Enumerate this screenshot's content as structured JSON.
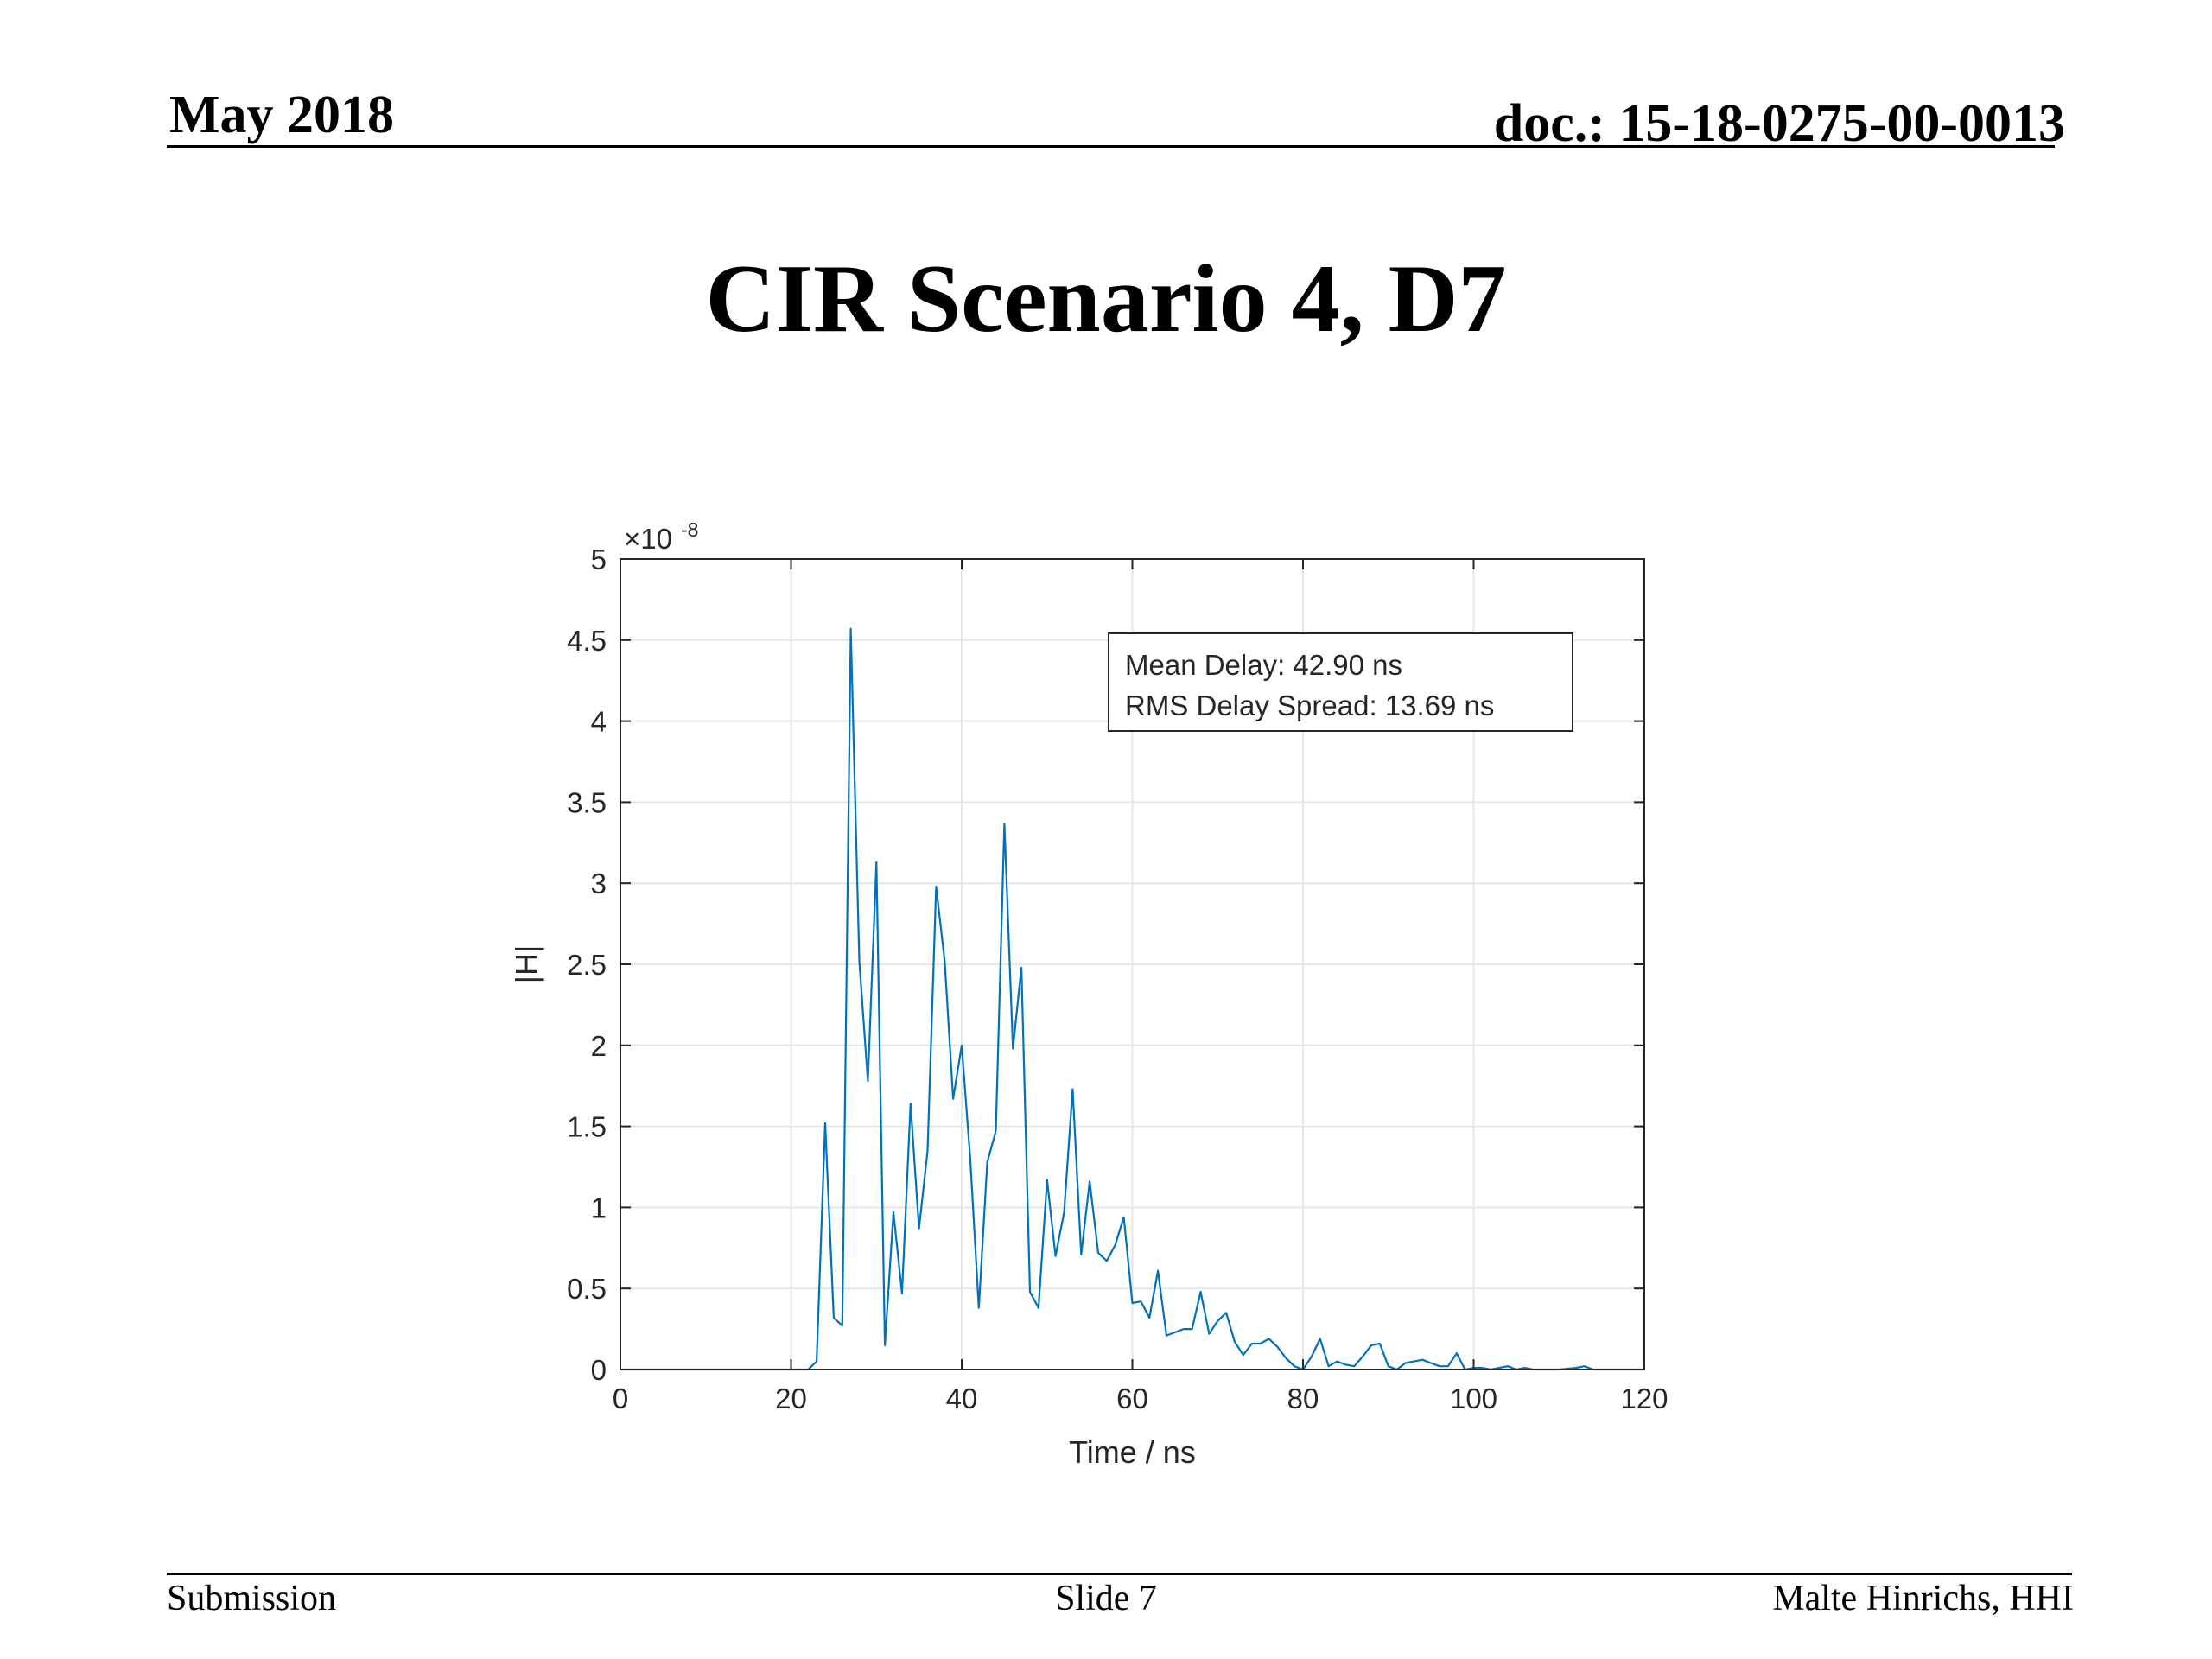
{
  "header": {
    "date": "May 2018",
    "doc": "doc.: 15-18-0275-00-0013"
  },
  "slide": {
    "title": "CIR Scenario 4, D7"
  },
  "footer": {
    "left": "Submission",
    "center": "Slide 7",
    "right": "Malte Hinrichs, HHI"
  },
  "colors": {
    "series": "#0072BD",
    "grid": "#e6e6e6",
    "axis": "#262626"
  },
  "chart_data": {
    "type": "line",
    "title": "",
    "xlabel": "Time / ns",
    "ylabel": "|H|",
    "y_exponent_label": "×10",
    "y_exponent": "-8",
    "xlim": [
      0,
      120
    ],
    "ylim": [
      0,
      5
    ],
    "xticks": [
      0,
      20,
      40,
      60,
      80,
      100,
      120
    ],
    "yticks": [
      0,
      0.5,
      1,
      1.5,
      2,
      2.5,
      3,
      3.5,
      4,
      4.5,
      5
    ],
    "ytick_labels": [
      "0",
      "0.5",
      "1",
      "1.5",
      "2",
      "2.5",
      "3",
      "3.5",
      "4",
      "4.5",
      "5"
    ],
    "grid": true,
    "annotation": [
      "Mean Delay: 42.90 ns",
      "RMS Delay Spread: 13.69 ns"
    ],
    "series": [
      {
        "x": [
          0,
          22,
          23,
          24,
          25,
          26,
          27,
          28,
          29,
          30,
          31,
          32,
          33,
          34,
          35,
          36,
          37,
          38,
          39,
          40,
          41,
          42,
          43,
          44,
          45,
          46,
          47,
          48,
          49,
          50,
          51,
          52,
          53,
          54,
          55,
          56,
          57,
          58,
          59,
          60,
          61,
          62,
          63,
          64,
          65,
          66,
          67,
          68,
          69,
          70,
          71,
          72,
          73,
          74,
          75,
          76,
          77,
          78,
          79,
          80,
          81,
          82,
          83,
          84,
          85,
          86,
          87,
          88,
          89,
          90,
          91,
          92,
          93,
          94,
          95,
          96,
          97,
          98,
          99,
          100,
          101,
          102,
          103,
          104,
          105,
          106,
          107,
          108,
          110,
          112,
          113,
          114,
          116,
          118,
          120
        ],
        "values": [
          0,
          0,
          0.05,
          1.52,
          0.32,
          0.27,
          4.57,
          2.52,
          1.78,
          3.13,
          0.15,
          0.97,
          0.47,
          1.64,
          0.87,
          1.35,
          2.98,
          2.52,
          1.67,
          2.0,
          1.3,
          0.38,
          1.28,
          1.47,
          3.37,
          1.98,
          2.48,
          0.48,
          0.38,
          1.17,
          0.7,
          0.97,
          1.73,
          0.71,
          1.16,
          0.72,
          0.67,
          0.77,
          0.94,
          0.41,
          0.42,
          0.32,
          0.61,
          0.21,
          0.23,
          0.25,
          0.25,
          0.48,
          0.22,
          0.3,
          0.35,
          0.17,
          0.09,
          0.16,
          0.16,
          0.19,
          0.14,
          0.07,
          0.02,
          0.0,
          0.08,
          0.19,
          0.02,
          0.05,
          0.03,
          0.02,
          0.08,
          0.15,
          0.16,
          0.02,
          0.0,
          0.04,
          0.05,
          0.06,
          0.04,
          0.02,
          0.02,
          0.1,
          0.0,
          0.01,
          0.01,
          0.0,
          0.01,
          0.02,
          0.0,
          0.01,
          0.0,
          0.0,
          0.0,
          0.01,
          0.02,
          0.0,
          0.0,
          0.0,
          0.0
        ]
      }
    ]
  }
}
